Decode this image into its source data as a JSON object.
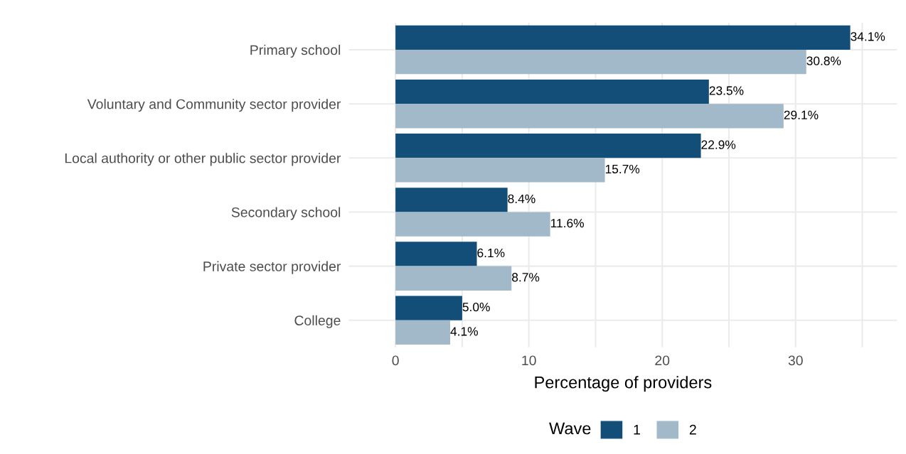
{
  "chart_data": {
    "type": "bar",
    "orientation": "horizontal",
    "xlabel": "Percentage of providers",
    "legend_title": "Wave",
    "categories": [
      "Primary school",
      "Voluntary and Community sector provider",
      "Local authority or other public sector provider",
      "Secondary school",
      "Private sector provider",
      "College"
    ],
    "series": [
      {
        "name": "1",
        "color": "#124e78",
        "values": [
          34.1,
          23.5,
          22.9,
          8.4,
          6.1,
          5.0
        ],
        "value_labels": [
          "34.1%",
          "23.5%",
          "22.9%",
          "8.4%",
          "6.1%",
          "5.0%"
        ]
      },
      {
        "name": "2",
        "color": "#a2b9c9",
        "values": [
          30.8,
          29.1,
          15.7,
          11.6,
          8.7,
          4.1
        ],
        "value_labels": [
          "30.8%",
          "29.1%",
          "15.7%",
          "11.6%",
          "8.7%",
          "4.1%"
        ]
      }
    ],
    "xlim": [
      -3.5,
      37.6
    ],
    "xticks": [
      0,
      {
        "value": 5,
        "label": null
      },
      10,
      {
        "value": 15,
        "label": null
      },
      20,
      {
        "value": 25,
        "label": null
      },
      30,
      {
        "value": 35,
        "label": null
      }
    ],
    "grid": true,
    "legend": "bottom"
  }
}
